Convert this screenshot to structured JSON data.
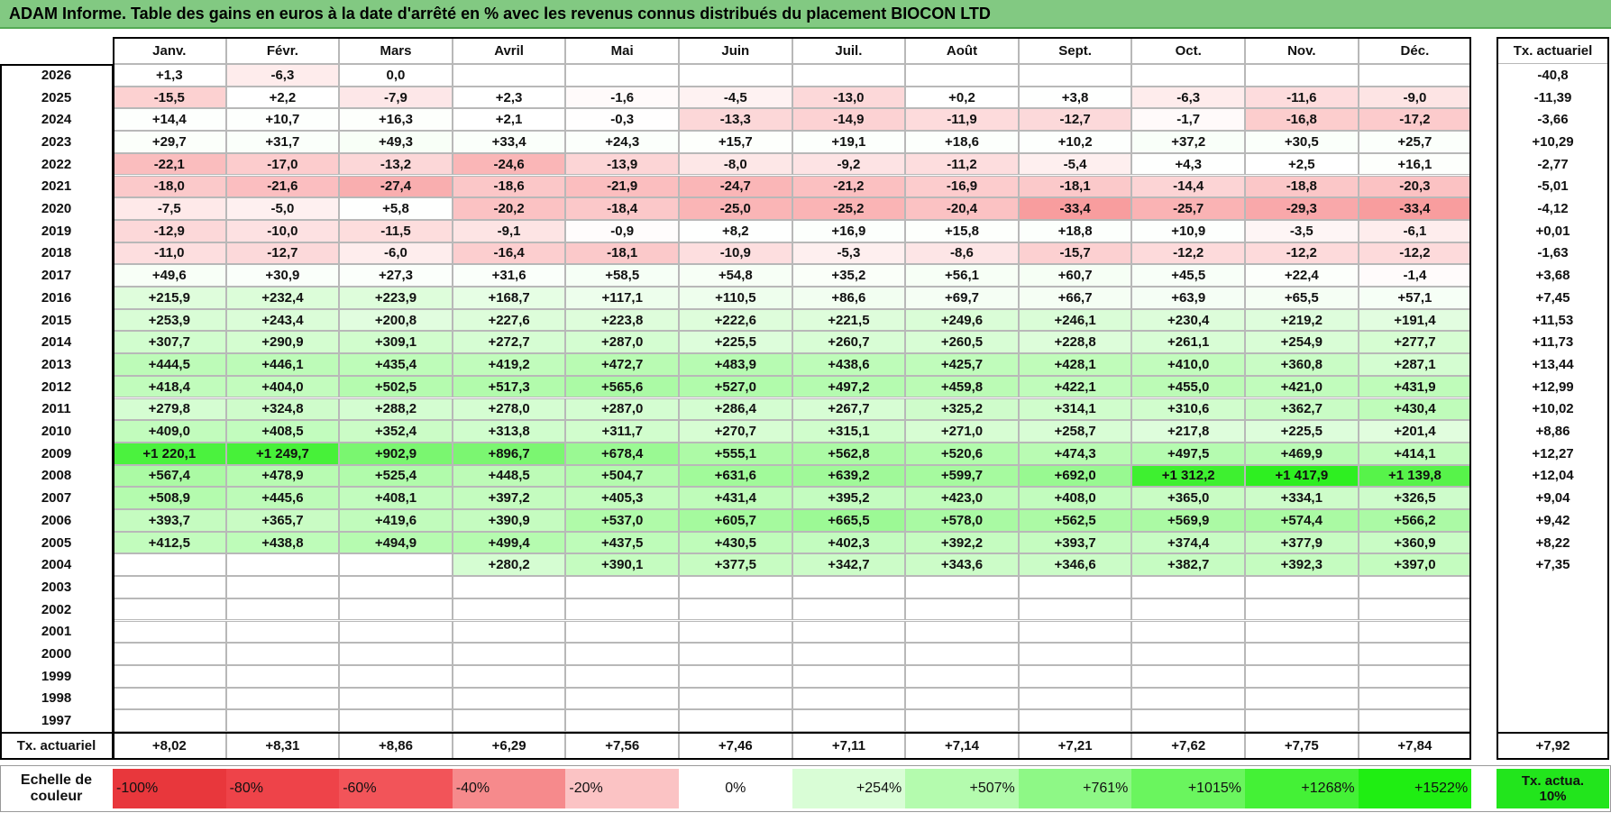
{
  "header": {
    "title": "ADAM Informe. Table des gains en euros à la date d'arrêté en % avec les revenus connus distribués du placement BIOCON LTD"
  },
  "table": {
    "columns": [
      "Janv.",
      "Févr.",
      "Mars",
      "Avril",
      "Mai",
      "Juin",
      "Juil.",
      "Août",
      "Sept.",
      "Oct.",
      "Nov.",
      "Déc."
    ],
    "total_column": "Tx. actuariel",
    "rows": [
      {
        "year": "2026",
        "values": [
          "+1,3",
          "-6,3",
          "0,0",
          null,
          null,
          null,
          null,
          null,
          null,
          null,
          null,
          null
        ],
        "total": "-40,8"
      },
      {
        "year": "2025",
        "values": [
          "-15,5",
          "+2,2",
          "-7,9",
          "+2,3",
          "-1,6",
          "-4,5",
          "-13,0",
          "+0,2",
          "+3,8",
          "-6,3",
          "-11,6",
          "-9,0"
        ],
        "total": "-11,39"
      },
      {
        "year": "2024",
        "values": [
          "+14,4",
          "+10,7",
          "+16,3",
          "+2,1",
          "-0,3",
          "-13,3",
          "-14,9",
          "-11,9",
          "-12,7",
          "-1,7",
          "-16,8",
          "-17,2"
        ],
        "total": "-3,66"
      },
      {
        "year": "2023",
        "values": [
          "+29,7",
          "+31,7",
          "+49,3",
          "+33,4",
          "+24,3",
          "+15,7",
          "+19,1",
          "+18,6",
          "+10,2",
          "+37,2",
          "+30,5",
          "+25,7"
        ],
        "total": "+10,29"
      },
      {
        "year": "2022",
        "values": [
          "-22,1",
          "-17,0",
          "-13,2",
          "-24,6",
          "-13,9",
          "-8,0",
          "-9,2",
          "-11,2",
          "-5,4",
          "+4,3",
          "+2,5",
          "+16,1"
        ],
        "total": "-2,77"
      },
      {
        "year": "2021",
        "values": [
          "-18,0",
          "-21,6",
          "-27,4",
          "-18,6",
          "-21,9",
          "-24,7",
          "-21,2",
          "-16,9",
          "-18,1",
          "-14,4",
          "-18,8",
          "-20,3"
        ],
        "total": "-5,01"
      },
      {
        "year": "2020",
        "values": [
          "-7,5",
          "-5,0",
          "+5,8",
          "-20,2",
          "-18,4",
          "-25,0",
          "-25,2",
          "-20,4",
          "-33,4",
          "-25,7",
          "-29,3",
          "-33,4"
        ],
        "total": "-4,12"
      },
      {
        "year": "2019",
        "values": [
          "-12,9",
          "-10,0",
          "-11,5",
          "-9,1",
          "-0,9",
          "+8,2",
          "+16,9",
          "+15,8",
          "+18,8",
          "+10,9",
          "-3,5",
          "-6,1"
        ],
        "total": "+0,01"
      },
      {
        "year": "2018",
        "values": [
          "-11,0",
          "-12,7",
          "-6,0",
          "-16,4",
          "-18,1",
          "-10,9",
          "-5,3",
          "-8,6",
          "-15,7",
          "-12,2",
          "-12,2",
          "-12,2"
        ],
        "total": "-1,63"
      },
      {
        "year": "2017",
        "values": [
          "+49,6",
          "+30,9",
          "+27,3",
          "+31,6",
          "+58,5",
          "+54,8",
          "+35,2",
          "+56,1",
          "+60,7",
          "+45,5",
          "+22,4",
          "-1,4"
        ],
        "total": "+3,68"
      },
      {
        "year": "2016",
        "values": [
          "+215,9",
          "+232,4",
          "+223,9",
          "+168,7",
          "+117,1",
          "+110,5",
          "+86,6",
          "+69,7",
          "+66,7",
          "+63,9",
          "+65,5",
          "+57,1"
        ],
        "total": "+7,45"
      },
      {
        "year": "2015",
        "values": [
          "+253,9",
          "+243,4",
          "+200,8",
          "+227,6",
          "+223,8",
          "+222,6",
          "+221,5",
          "+249,6",
          "+246,1",
          "+230,4",
          "+219,2",
          "+191,4"
        ],
        "total": "+11,53"
      },
      {
        "year": "2014",
        "values": [
          "+307,7",
          "+290,9",
          "+309,1",
          "+272,7",
          "+287,0",
          "+225,5",
          "+260,7",
          "+260,5",
          "+228,8",
          "+261,1",
          "+254,9",
          "+277,7"
        ],
        "total": "+11,73"
      },
      {
        "year": "2013",
        "values": [
          "+444,5",
          "+446,1",
          "+435,4",
          "+419,2",
          "+472,7",
          "+483,9",
          "+438,6",
          "+425,7",
          "+428,1",
          "+410,0",
          "+360,8",
          "+287,1"
        ],
        "total": "+13,44"
      },
      {
        "year": "2012",
        "values": [
          "+418,4",
          "+404,0",
          "+502,5",
          "+517,3",
          "+565,6",
          "+527,0",
          "+497,2",
          "+459,8",
          "+422,1",
          "+455,0",
          "+421,0",
          "+431,9"
        ],
        "total": "+12,99"
      },
      {
        "year": "2011",
        "values": [
          "+279,8",
          "+324,8",
          "+288,2",
          "+278,0",
          "+287,0",
          "+286,4",
          "+267,7",
          "+325,2",
          "+314,1",
          "+310,6",
          "+362,7",
          "+430,4"
        ],
        "total": "+10,02"
      },
      {
        "year": "2010",
        "values": [
          "+409,0",
          "+408,5",
          "+352,4",
          "+313,8",
          "+311,7",
          "+270,7",
          "+315,1",
          "+271,0",
          "+258,7",
          "+217,8",
          "+225,5",
          "+201,4"
        ],
        "total": "+8,86"
      },
      {
        "year": "2009",
        "values": [
          "+1 220,1",
          "+1 249,7",
          "+902,9",
          "+896,7",
          "+678,4",
          "+555,1",
          "+562,8",
          "+520,6",
          "+474,3",
          "+497,5",
          "+469,9",
          "+414,1"
        ],
        "total": "+12,27"
      },
      {
        "year": "2008",
        "values": [
          "+567,4",
          "+478,9",
          "+525,4",
          "+448,5",
          "+504,7",
          "+631,6",
          "+639,2",
          "+599,7",
          "+692,0",
          "+1 312,2",
          "+1 417,9",
          "+1 139,8"
        ],
        "total": "+12,04"
      },
      {
        "year": "2007",
        "values": [
          "+508,9",
          "+445,6",
          "+408,1",
          "+397,2",
          "+405,3",
          "+431,4",
          "+395,2",
          "+423,0",
          "+408,0",
          "+365,0",
          "+334,1",
          "+326,5"
        ],
        "total": "+9,04"
      },
      {
        "year": "2006",
        "values": [
          "+393,7",
          "+365,7",
          "+419,6",
          "+390,9",
          "+537,0",
          "+605,7",
          "+665,5",
          "+578,0",
          "+562,5",
          "+569,9",
          "+574,4",
          "+566,2"
        ],
        "total": "+9,42"
      },
      {
        "year": "2005",
        "values": [
          "+412,5",
          "+438,8",
          "+494,9",
          "+499,4",
          "+437,5",
          "+430,5",
          "+402,3",
          "+392,2",
          "+393,7",
          "+374,4",
          "+377,9",
          "+360,9"
        ],
        "total": "+8,22"
      },
      {
        "year": "2004",
        "values": [
          null,
          null,
          null,
          "+280,2",
          "+390,1",
          "+377,5",
          "+342,7",
          "+343,6",
          "+346,6",
          "+382,7",
          "+392,3",
          "+397,0"
        ],
        "total": "+7,35"
      },
      {
        "year": "2003",
        "values": [
          null,
          null,
          null,
          null,
          null,
          null,
          null,
          null,
          null,
          null,
          null,
          null
        ],
        "total": null
      },
      {
        "year": "2002",
        "values": [
          null,
          null,
          null,
          null,
          null,
          null,
          null,
          null,
          null,
          null,
          null,
          null
        ],
        "total": null
      },
      {
        "year": "2001",
        "values": [
          null,
          null,
          null,
          null,
          null,
          null,
          null,
          null,
          null,
          null,
          null,
          null
        ],
        "total": null
      },
      {
        "year": "2000",
        "values": [
          null,
          null,
          null,
          null,
          null,
          null,
          null,
          null,
          null,
          null,
          null,
          null
        ],
        "total": null
      },
      {
        "year": "1999",
        "values": [
          null,
          null,
          null,
          null,
          null,
          null,
          null,
          null,
          null,
          null,
          null,
          null
        ],
        "total": null
      },
      {
        "year": "1998",
        "values": [
          null,
          null,
          null,
          null,
          null,
          null,
          null,
          null,
          null,
          null,
          null,
          null
        ],
        "total": null
      },
      {
        "year": "1997",
        "values": [
          null,
          null,
          null,
          null,
          null,
          null,
          null,
          null,
          null,
          null,
          null,
          null
        ],
        "total": null
      }
    ],
    "footer": {
      "label": "Tx. actuariel",
      "values": [
        "+8,02",
        "+8,31",
        "+8,86",
        "+6,29",
        "+7,56",
        "+7,46",
        "+7,11",
        "+7,14",
        "+7,21",
        "+7,62",
        "+7,75",
        "+7,84"
      ],
      "total": "+7,92"
    }
  },
  "legend": {
    "label": "Echelle de couleur",
    "steps": [
      {
        "label": "-100%",
        "color": "#e8373c"
      },
      {
        "label": "-80%",
        "color": "#ee4349"
      },
      {
        "label": "-60%",
        "color": "#f25459"
      },
      {
        "label": "-40%",
        "color": "#f68a8c"
      },
      {
        "label": "-20%",
        "color": "#fbc3c4"
      },
      {
        "label": "0%",
        "color": "#ffffff"
      },
      {
        "label": "+254%",
        "color": "#d9fdd6"
      },
      {
        "label": "+507%",
        "color": "#b4fbae"
      },
      {
        "label": "+761%",
        "color": "#8ef886"
      },
      {
        "label": "+1015%",
        "color": "#6af55e"
      },
      {
        "label": "+1268%",
        "color": "#44f136"
      },
      {
        "label": "+1522%",
        "color": "#1fee12"
      }
    ],
    "extra": {
      "label": "Tx. actua. 10%",
      "color": "#22e51c"
    }
  }
}
